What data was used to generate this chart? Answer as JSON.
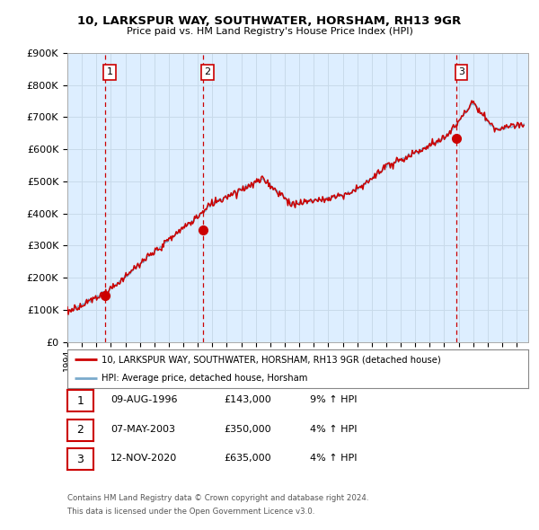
{
  "title1": "10, LARKSPUR WAY, SOUTHWATER, HORSHAM, RH13 9GR",
  "title2": "Price paid vs. HM Land Registry's House Price Index (HPI)",
  "ylabel_ticks": [
    "£0",
    "£100K",
    "£200K",
    "£300K",
    "£400K",
    "£500K",
    "£600K",
    "£700K",
    "£800K",
    "£900K"
  ],
  "ytick_values": [
    0,
    100000,
    200000,
    300000,
    400000,
    500000,
    600000,
    700000,
    800000,
    900000
  ],
  "ylim": [
    0,
    900000
  ],
  "xlim_start": 1994.0,
  "xlim_end": 2025.8,
  "sale_dates": [
    1996.61,
    2003.35,
    2020.87
  ],
  "sale_prices": [
    143000,
    350000,
    635000
  ],
  "sale_labels": [
    "1",
    "2",
    "3"
  ],
  "red_line_color": "#cc0000",
  "blue_line_color": "#7aaacc",
  "grid_color": "#c8daea",
  "dashed_line_color": "#cc0000",
  "legend_line1": "10, LARKSPUR WAY, SOUTHWATER, HORSHAM, RH13 9GR (detached house)",
  "legend_line2": "HPI: Average price, detached house, Horsham",
  "table_rows": [
    [
      "1",
      "09-AUG-1996",
      "£143,000",
      "9% ↑ HPI"
    ],
    [
      "2",
      "07-MAY-2003",
      "£350,000",
      "4% ↑ HPI"
    ],
    [
      "3",
      "12-NOV-2020",
      "£635,000",
      "4% ↑ HPI"
    ]
  ],
  "footnote1": "Contains HM Land Registry data © Crown copyright and database right 2024.",
  "footnote2": "This data is licensed under the Open Government Licence v3.0.",
  "bg_color": "#ffffff",
  "plot_bg_color": "#ddeeff"
}
